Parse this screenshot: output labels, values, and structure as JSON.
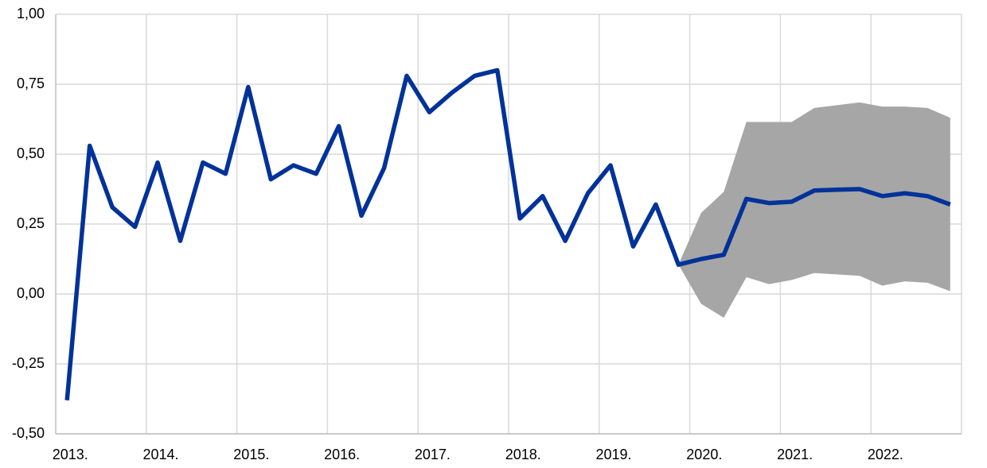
{
  "chart_data": {
    "type": "line",
    "categories": [
      "2013.",
      null,
      null,
      null,
      "2014.",
      null,
      null,
      null,
      "2015.",
      null,
      null,
      null,
      "2016.",
      null,
      null,
      null,
      "2017.",
      null,
      null,
      null,
      "2018.",
      null,
      null,
      null,
      "2019.",
      null,
      null,
      null,
      "2020.",
      null,
      null,
      null,
      "2021.",
      null,
      null,
      null,
      "2022.",
      null,
      null,
      null
    ],
    "series": [
      {
        "color": "#003299",
        "values": [
          -0.38,
          0.53,
          0.31,
          0.24,
          0.47,
          0.19,
          0.47,
          0.43,
          0.74,
          0.41,
          0.46,
          0.43,
          0.6,
          0.28,
          0.45,
          0.78,
          0.65,
          0.72,
          0.78,
          0.8,
          0.27,
          0.35,
          0.19,
          0.36,
          0.46,
          0.17,
          0.32,
          0.105,
          0.125,
          0.14,
          0.34,
          0.325,
          0.33,
          0.37,
          0.373,
          0.375,
          0.35,
          0.36,
          0.35,
          0.32
        ]
      }
    ],
    "band": {
      "color": "#a6a6a6",
      "upper": [
        null,
        null,
        null,
        null,
        null,
        null,
        null,
        null,
        null,
        null,
        null,
        null,
        null,
        null,
        null,
        null,
        null,
        null,
        null,
        null,
        null,
        null,
        null,
        null,
        null,
        null,
        null,
        0.105,
        0.29,
        0.365,
        0.615,
        0.615,
        0.615,
        0.665,
        0.675,
        0.685,
        0.67,
        0.67,
        0.665,
        0.63
      ],
      "lower": [
        null,
        null,
        null,
        null,
        null,
        null,
        null,
        null,
        null,
        null,
        null,
        null,
        null,
        null,
        null,
        null,
        null,
        null,
        null,
        null,
        null,
        null,
        null,
        null,
        null,
        null,
        null,
        0.105,
        -0.035,
        -0.085,
        0.06,
        0.035,
        0.05,
        0.075,
        0.07,
        0.065,
        0.03,
        0.045,
        0.04,
        0.01
      ]
    },
    "ylim": [
      -0.5,
      1.0
    ],
    "yticks": [
      {
        "value": -0.5,
        "label": "-0,50"
      },
      {
        "value": -0.25,
        "label": "-0,25"
      },
      {
        "value": 0,
        "label": "0,00"
      },
      {
        "value": 0.25,
        "label": "0,25"
      },
      {
        "value": 0.5,
        "label": "0,50"
      },
      {
        "value": 0.75,
        "label": "0,75"
      },
      {
        "value": 1.0,
        "label": "1,00"
      }
    ],
    "grid": true
  }
}
